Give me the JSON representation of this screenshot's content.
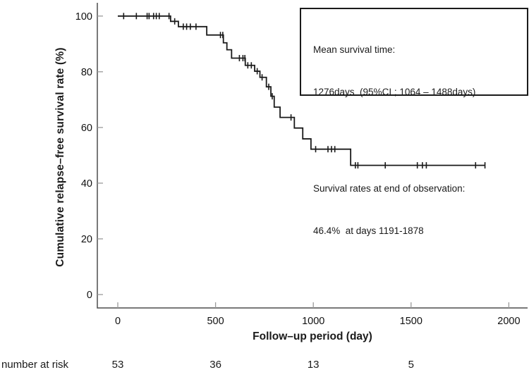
{
  "annotation": {
    "mean_title": "Mean survival time:",
    "mean_value": "1276days  (95%CI ; 1064 – 1488days)",
    "end_title": "Survival rates at end of observation:",
    "end_value": "46.4%  at days 1191-1878"
  },
  "risk_table": {
    "label": "number at risk",
    "days": [
      0,
      500,
      1000,
      1500
    ],
    "counts": [
      53,
      36,
      13,
      5
    ]
  },
  "chart_data": {
    "type": "line",
    "subtype": "kaplan-meier-step-curve",
    "title": "",
    "xlabel": "Follow–up period (day)",
    "ylabel": "Cumulative relapse–free survival rate (%)",
    "x_ticks": [
      0,
      500,
      1000,
      1500,
      2000
    ],
    "y_ticks": [
      0,
      20,
      40,
      60,
      80,
      100
    ],
    "xlim": [
      0,
      2100
    ],
    "ylim": [
      0,
      100
    ],
    "grid": false,
    "legend": "none",
    "line_color": "#1a1a1a",
    "curve_start": {
      "day": 0,
      "survival_pct": 100
    },
    "steps": [
      {
        "day": 270,
        "survival_pct": 98.1
      },
      {
        "day": 310,
        "survival_pct": 96.2
      },
      {
        "day": 455,
        "survival_pct": 93.2
      },
      {
        "day": 540,
        "survival_pct": 90.4
      },
      {
        "day": 558,
        "survival_pct": 87.9
      },
      {
        "day": 582,
        "survival_pct": 84.9
      },
      {
        "day": 652,
        "survival_pct": 82.3
      },
      {
        "day": 700,
        "survival_pct": 80.2
      },
      {
        "day": 727,
        "survival_pct": 78.0
      },
      {
        "day": 760,
        "survival_pct": 74.6
      },
      {
        "day": 783,
        "survival_pct": 71.2
      },
      {
        "day": 800,
        "survival_pct": 67.3
      },
      {
        "day": 830,
        "survival_pct": 63.6
      },
      {
        "day": 903,
        "survival_pct": 59.8
      },
      {
        "day": 946,
        "survival_pct": 55.9
      },
      {
        "day": 988,
        "survival_pct": 52.2
      },
      {
        "day": 1191,
        "survival_pct": 46.4
      }
    ],
    "curve_end_day": 1878,
    "censor_marks": [
      [
        30,
        100
      ],
      [
        95,
        100
      ],
      [
        150,
        100
      ],
      [
        160,
        100
      ],
      [
        183,
        100
      ],
      [
        197,
        100
      ],
      [
        212,
        100
      ],
      [
        262,
        100
      ],
      [
        291,
        98.1
      ],
      [
        335,
        96.2
      ],
      [
        352,
        96.2
      ],
      [
        371,
        96.2
      ],
      [
        400,
        96.2
      ],
      [
        525,
        93.2
      ],
      [
        537,
        93.2
      ],
      [
        622,
        84.9
      ],
      [
        640,
        84.9
      ],
      [
        650,
        84.9
      ],
      [
        665,
        82.3
      ],
      [
        683,
        82.3
      ],
      [
        713,
        80.2
      ],
      [
        738,
        78.0
      ],
      [
        772,
        74.6
      ],
      [
        790,
        71.2
      ],
      [
        886,
        63.6
      ],
      [
        1012,
        52.2
      ],
      [
        1075,
        52.2
      ],
      [
        1093,
        52.2
      ],
      [
        1110,
        52.2
      ],
      [
        1215,
        46.4
      ],
      [
        1228,
        46.4
      ],
      [
        1368,
        46.4
      ],
      [
        1532,
        46.4
      ],
      [
        1558,
        46.4
      ],
      [
        1578,
        46.4
      ],
      [
        1830,
        46.4
      ],
      [
        1878,
        46.4
      ]
    ],
    "number_at_risk": {
      "days": [
        0,
        500,
        1000,
        1500
      ],
      "counts": [
        53,
        36,
        13,
        5
      ]
    },
    "mean_survival_days": 1276,
    "ci95_days": [
      1064,
      1488
    ],
    "final_survival_pct": 46.4,
    "final_observation_days": [
      1191,
      1878
    ]
  }
}
